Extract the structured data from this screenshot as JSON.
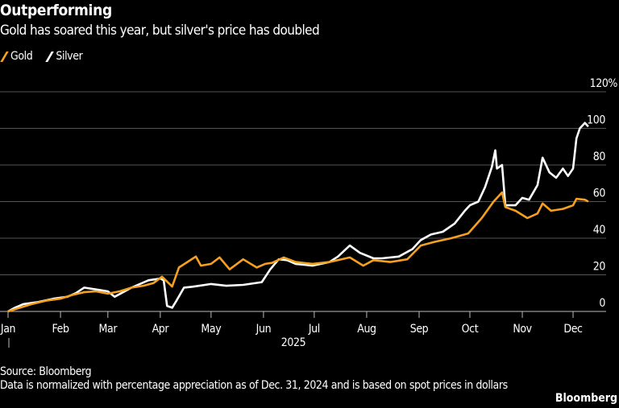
{
  "chart_data": {
    "type": "line",
    "title": "Outperforming",
    "subtitle": "Gold has soared this year, but silver's price has doubled",
    "xlabel": "2025",
    "ylabel": "",
    "ylim": [
      0,
      120
    ],
    "y_ticks": [
      "0",
      "20",
      "40",
      "60",
      "80",
      "100",
      "120%"
    ],
    "y_tick_values": [
      0,
      20,
      40,
      60,
      80,
      100,
      120
    ],
    "x_tick_labels": [
      "Jan",
      "Feb",
      "Mar",
      "Apr",
      "May",
      "Jun",
      "Jul",
      "Aug",
      "Sep",
      "Oct",
      "Nov",
      "Dec"
    ],
    "x_tick_dates": [
      "2025-01-01",
      "2025-02-01",
      "2025-03-01",
      "2025-04-01",
      "2025-05-01",
      "2025-06-01",
      "2025-07-01",
      "2025-08-01",
      "2025-09-01",
      "2025-10-01",
      "2025-11-01",
      "2025-12-01"
    ],
    "grid": true,
    "legend_position": "top-left",
    "series": [
      {
        "name": "Gold",
        "color": "#f6a020",
        "points": [
          [
            "2025-01-01",
            0
          ],
          [
            "2025-01-08",
            2
          ],
          [
            "2025-01-15",
            4
          ],
          [
            "2025-01-24",
            6
          ],
          [
            "2025-02-01",
            7
          ],
          [
            "2025-02-08",
            9
          ],
          [
            "2025-02-15",
            10.5
          ],
          [
            "2025-02-22",
            11
          ],
          [
            "2025-03-01",
            9.7
          ],
          [
            "2025-03-08",
            11
          ],
          [
            "2025-03-15",
            13
          ],
          [
            "2025-03-22",
            14
          ],
          [
            "2025-03-28",
            15.5
          ],
          [
            "2025-04-02",
            19
          ],
          [
            "2025-04-08",
            13.6
          ],
          [
            "2025-04-12",
            24
          ],
          [
            "2025-04-17",
            27
          ],
          [
            "2025-04-22",
            30
          ],
          [
            "2025-04-25",
            25
          ],
          [
            "2025-05-01",
            26
          ],
          [
            "2025-05-06",
            29.5
          ],
          [
            "2025-05-12",
            23
          ],
          [
            "2025-05-20",
            28.5
          ],
          [
            "2025-05-28",
            24
          ],
          [
            "2025-06-02",
            26
          ],
          [
            "2025-06-06",
            26.5
          ],
          [
            "2025-06-13",
            29.5
          ],
          [
            "2025-06-20",
            27
          ],
          [
            "2025-06-30",
            26
          ],
          [
            "2025-07-10",
            27
          ],
          [
            "2025-07-22",
            29.5
          ],
          [
            "2025-07-30",
            25
          ],
          [
            "2025-08-05",
            28
          ],
          [
            "2025-08-15",
            27
          ],
          [
            "2025-08-25",
            28.5
          ],
          [
            "2025-09-02",
            36
          ],
          [
            "2025-09-10",
            38
          ],
          [
            "2025-09-20",
            40
          ],
          [
            "2025-09-30",
            42.6
          ],
          [
            "2025-10-08",
            51
          ],
          [
            "2025-10-15",
            60
          ],
          [
            "2025-10-20",
            65
          ],
          [
            "2025-10-22",
            57
          ],
          [
            "2025-10-28",
            55
          ],
          [
            "2025-11-04",
            51
          ],
          [
            "2025-11-10",
            53.5
          ],
          [
            "2025-11-13",
            59
          ],
          [
            "2025-11-18",
            55
          ],
          [
            "2025-11-25",
            56
          ],
          [
            "2025-12-01",
            58
          ],
          [
            "2025-12-03",
            61.5
          ],
          [
            "2025-12-08",
            61
          ],
          [
            "2025-12-10",
            60
          ]
        ]
      },
      {
        "name": "Silver",
        "color": "#ffffff",
        "points": [
          [
            "2025-01-01",
            0
          ],
          [
            "2025-01-05",
            2
          ],
          [
            "2025-01-10",
            4
          ],
          [
            "2025-01-18",
            5
          ],
          [
            "2025-01-28",
            7
          ],
          [
            "2025-02-05",
            8
          ],
          [
            "2025-02-10",
            10
          ],
          [
            "2025-02-15",
            13
          ],
          [
            "2025-02-22",
            12
          ],
          [
            "2025-03-01",
            11
          ],
          [
            "2025-03-05",
            8
          ],
          [
            "2025-03-15",
            13
          ],
          [
            "2025-03-25",
            17
          ],
          [
            "2025-04-01",
            18
          ],
          [
            "2025-04-03",
            17
          ],
          [
            "2025-04-05",
            3
          ],
          [
            "2025-04-08",
            2
          ],
          [
            "2025-04-10",
            5
          ],
          [
            "2025-04-15",
            13
          ],
          [
            "2025-04-20",
            13.5
          ],
          [
            "2025-05-01",
            15
          ],
          [
            "2025-05-10",
            14
          ],
          [
            "2025-05-20",
            14.5
          ],
          [
            "2025-05-31",
            16
          ],
          [
            "2025-06-05",
            23
          ],
          [
            "2025-06-10",
            28.5
          ],
          [
            "2025-06-15",
            28
          ],
          [
            "2025-06-20",
            26
          ],
          [
            "2025-06-30",
            25
          ],
          [
            "2025-07-10",
            27
          ],
          [
            "2025-07-15",
            30
          ],
          [
            "2025-07-22",
            36
          ],
          [
            "2025-07-28",
            32
          ],
          [
            "2025-08-05",
            29
          ],
          [
            "2025-08-10",
            29
          ],
          [
            "2025-08-20",
            30
          ],
          [
            "2025-08-28",
            34
          ],
          [
            "2025-09-02",
            39
          ],
          [
            "2025-09-08",
            42
          ],
          [
            "2025-09-15",
            43.5
          ],
          [
            "2025-09-22",
            48
          ],
          [
            "2025-09-28",
            55
          ],
          [
            "2025-10-01",
            58
          ],
          [
            "2025-10-06",
            60
          ],
          [
            "2025-10-10",
            68
          ],
          [
            "2025-10-14",
            79
          ],
          [
            "2025-10-16",
            88
          ],
          [
            "2025-10-17",
            78
          ],
          [
            "2025-10-20",
            80
          ],
          [
            "2025-10-22",
            58
          ],
          [
            "2025-10-28",
            58
          ],
          [
            "2025-11-01",
            62
          ],
          [
            "2025-11-05",
            61
          ],
          [
            "2025-11-10",
            69
          ],
          [
            "2025-11-13",
            84
          ],
          [
            "2025-11-17",
            76
          ],
          [
            "2025-11-21",
            73
          ],
          [
            "2025-11-25",
            78
          ],
          [
            "2025-11-28",
            74
          ],
          [
            "2025-12-01",
            78
          ],
          [
            "2025-12-03",
            94.5
          ],
          [
            "2025-12-05",
            100
          ],
          [
            "2025-12-08",
            103
          ],
          [
            "2025-12-10",
            101
          ]
        ]
      }
    ]
  },
  "footer": {
    "source": "Source: Bloomberg",
    "note": "Data is normalized with percentage appreciation as of Dec. 31, 2024 and is based on spot prices in dollars",
    "brand": "Bloomberg"
  }
}
